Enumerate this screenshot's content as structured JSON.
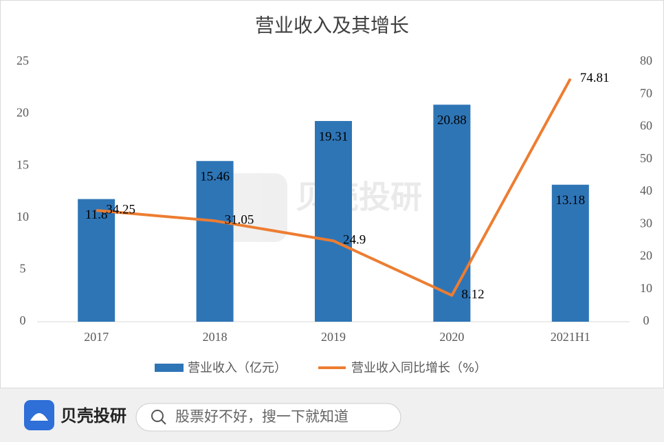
{
  "chart_data": {
    "type": "bar",
    "title": "营业收入及其增长",
    "categories": [
      "2017",
      "2018",
      "2019",
      "2020",
      "2021H1"
    ],
    "series": [
      {
        "name": "营业收入（亿元）",
        "type": "bar",
        "color": "#2e75b6",
        "values": [
          11.8,
          15.46,
          19.31,
          20.88,
          13.18
        ]
      },
      {
        "name": "营业收入同比增长（%）",
        "type": "line",
        "axis": "y2",
        "color": "#ed7d31",
        "values": [
          34.25,
          31.05,
          24.9,
          8.12,
          74.81
        ]
      }
    ],
    "ylim": [
      0,
      25
    ],
    "yticks": [
      0,
      5,
      10,
      15,
      20,
      25
    ],
    "y2lim": [
      0,
      80
    ],
    "y2ticks": [
      0,
      10,
      20,
      30,
      40,
      50,
      60,
      70,
      80
    ],
    "grid": false,
    "legend": "bottom"
  },
  "watermark": "贝壳投研",
  "footer": {
    "brand": "贝壳投研",
    "search_placeholder": "股票好不好，搜一下就知道"
  }
}
